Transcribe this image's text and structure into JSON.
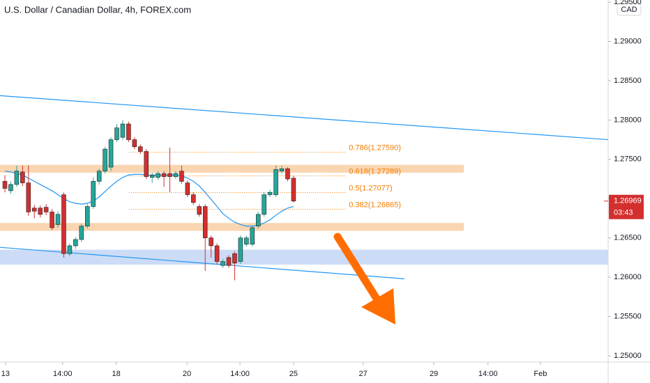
{
  "chart_data": {
    "type": "candlestick",
    "title": "U.S. Dollar / Canadian Dollar, 4h, FOREX.com",
    "currency": "CAD",
    "up_color": "#26a69a",
    "down_color": "#d32f2f",
    "x": [
      0,
      1,
      2,
      3,
      4,
      5,
      6,
      7,
      8,
      9,
      10,
      11,
      12,
      13,
      14,
      15,
      16,
      17,
      18,
      19,
      20,
      21,
      22,
      23,
      24,
      25,
      26,
      27,
      28,
      29,
      30,
      31,
      32,
      33,
      34,
      35,
      36,
      37,
      38,
      39,
      40,
      41,
      42,
      43,
      44,
      45,
      46,
      47,
      48,
      49
    ],
    "open": [
      1.2722,
      1.271,
      1.2718,
      1.2734,
      1.272,
      1.2688,
      1.2688,
      1.2689,
      1.2683,
      1.2667,
      1.2705,
      1.263,
      1.264,
      1.2648,
      1.2665,
      1.269,
      1.2722,
      1.2735,
      1.274,
      1.2775,
      1.2778,
      1.2795,
      1.2775,
      1.2766,
      1.276,
      1.2727,
      1.2727,
      1.2732,
      1.2732,
      1.2728,
      1.2735,
      1.272,
      1.2705,
      1.269,
      1.269,
      1.265,
      1.264,
      1.2615,
      1.2625,
      1.263,
      1.262,
      1.2642,
      1.2642,
      1.2665,
      1.268,
      1.2705,
      1.2705,
      1.2735,
      1.2738,
      1.2726
    ],
    "high": [
      1.273,
      1.2722,
      1.2742,
      1.2742,
      1.2742,
      1.2692,
      1.2691,
      1.2693,
      1.2687,
      1.2684,
      1.2708,
      1.2643,
      1.2651,
      1.2668,
      1.2693,
      1.2727,
      1.2738,
      1.2766,
      1.2778,
      1.2795,
      1.28,
      1.2798,
      1.2778,
      1.2769,
      1.2763,
      1.2733,
      1.2735,
      1.2735,
      1.2765,
      1.2735,
      1.2742,
      1.2723,
      1.2708,
      1.2693,
      1.2693,
      1.2653,
      1.2643,
      1.2623,
      1.2628,
      1.2633,
      1.2653,
      1.2653,
      1.2666,
      1.2683,
      1.2708,
      1.2711,
      1.2742,
      1.2742,
      1.274,
      1.2729
    ],
    "low": [
      1.2708,
      1.2706,
      1.2715,
      1.2716,
      1.2678,
      1.2675,
      1.2676,
      1.2679,
      1.266,
      1.2663,
      1.2625,
      1.2627,
      1.2636,
      1.2645,
      1.2662,
      1.2687,
      1.2718,
      1.2732,
      1.2735,
      1.2772,
      1.2775,
      1.2772,
      1.2763,
      1.2757,
      1.2725,
      1.272,
      1.2724,
      1.2715,
      1.2708,
      1.2725,
      1.2719,
      1.2702,
      1.2692,
      1.2677,
      1.2608,
      1.2625,
      1.2617,
      1.2612,
      1.2612,
      1.2596,
      1.2617,
      1.2639,
      1.2639,
      1.2662,
      1.2677,
      1.2702,
      1.2702,
      1.2732,
      1.2722,
      1.2695
    ],
    "close": [
      1.2713,
      1.2718,
      1.2735,
      1.272,
      1.2683,
      1.2684,
      1.268,
      1.2683,
      1.2663,
      1.268,
      1.263,
      1.264,
      1.2648,
      1.2665,
      1.269,
      1.2722,
      1.2735,
      1.2763,
      1.2775,
      1.279,
      1.2795,
      1.2775,
      1.2766,
      1.276,
      1.2728,
      1.273,
      1.2732,
      1.2728,
      1.2728,
      1.2732,
      1.2722,
      1.2705,
      1.2695,
      1.268,
      1.265,
      1.264,
      1.262,
      1.262,
      1.2615,
      1.2618,
      1.265,
      1.265,
      1.2663,
      1.268,
      1.2705,
      1.2708,
      1.2737,
      1.2738,
      1.2725,
      1.26969
    ],
    "moving_average": {
      "color": "#2196f3",
      "values": [
        1.2735,
        1.2734,
        1.2732,
        1.273,
        1.2726,
        1.2722,
        1.2718,
        1.2714,
        1.271,
        1.2705,
        1.27,
        1.2696,
        1.2694,
        1.2693,
        1.2694,
        1.2697,
        1.2702,
        1.2709,
        1.2716,
        1.2722,
        1.2727,
        1.273,
        1.2731,
        1.2731,
        1.273,
        1.273,
        1.273,
        1.273,
        1.273,
        1.273,
        1.2729,
        1.2726,
        1.2722,
        1.2716,
        1.2708,
        1.2699,
        1.269,
        1.2681,
        1.2675,
        1.267,
        1.2667,
        1.2665,
        1.2665,
        1.2666,
        1.2669,
        1.2673,
        1.2679,
        1.2684,
        1.2688,
        1.269
      ]
    },
    "xlim": [
      -0.83,
      102.4
    ],
    "xticks": [
      {
        "value": 0.1,
        "label": "13"
      },
      {
        "value": 9.8,
        "label": "14:00"
      },
      {
        "value": 18.9,
        "label": "18"
      },
      {
        "value": 30.9,
        "label": "20"
      },
      {
        "value": 39.9,
        "label": "14:00"
      },
      {
        "value": 49,
        "label": "25"
      },
      {
        "value": 60.8,
        "label": "27"
      },
      {
        "value": 72.8,
        "label": "29"
      },
      {
        "value": 82,
        "label": "14:00"
      },
      {
        "value": 90.9,
        "label": "Feb"
      }
    ],
    "ylim": [
      1.2492,
      1.29527
    ],
    "yticks": [
      {
        "value": 1.25,
        "label": "1.25000"
      },
      {
        "value": 1.255,
        "label": "1.25500"
      },
      {
        "value": 1.26,
        "label": "1.26000"
      },
      {
        "value": 1.265,
        "label": "1.26500"
      },
      {
        "value": 1.27,
        "label": "1.27000"
      },
      {
        "value": 1.275,
        "label": "1.27500"
      },
      {
        "value": 1.28,
        "label": "1.28000"
      },
      {
        "value": 1.285,
        "label": "1.28500"
      },
      {
        "value": 1.29,
        "label": "1.29000"
      },
      {
        "value": 1.295,
        "label": "1.29500"
      }
    ],
    "grid": false,
    "last_price": {
      "value": 1.26969,
      "label": "1.26969"
    },
    "countdown": "03:43",
    "zones": [
      {
        "color": "#f8cfa3",
        "x": [
          -0.83,
          77.9
        ],
        "y": [
          1.2733,
          1.2743
        ]
      },
      {
        "color": "#f8cfa3",
        "x": [
          -0.83,
          77.9
        ],
        "y": [
          1.2659,
          1.2669
        ]
      },
      {
        "color": "#c3d6f4",
        "x": [
          -0.83,
          102.4
        ],
        "y": [
          1.2616,
          1.2635
        ]
      }
    ],
    "trendlines": [
      {
        "color": "#2196f3",
        "x": [
          -0.83,
          102.4
        ],
        "y": [
          1.2831,
          1.2775
        ]
      },
      {
        "color": "#2196f3",
        "x": [
          -0.83,
          67.8
        ],
        "y": [
          1.2638,
          1.2598
        ]
      }
    ],
    "fib": {
      "color": "#f57c00",
      "x": [
        21.1,
        57.8
      ],
      "levels": [
        {
          "value": 1.2759,
          "label": "0.786(1.27590)"
        },
        {
          "value": 1.27289,
          "label": "0.618(1.27289)"
        },
        {
          "value": 1.27077,
          "label": "0.5(1.27077)"
        },
        {
          "value": 1.26865,
          "label": "0.382(1.26865)"
        }
      ]
    }
  }
}
